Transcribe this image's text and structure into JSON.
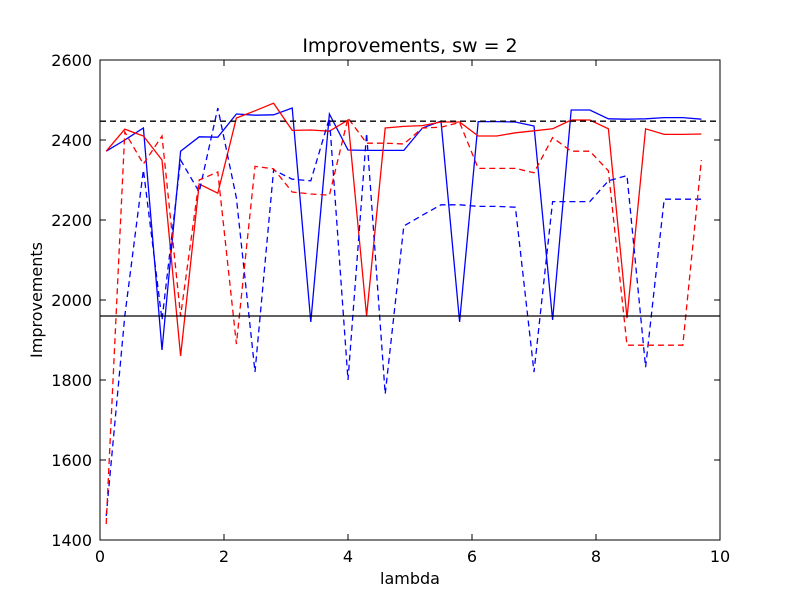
{
  "chart_data": {
    "type": "line",
    "title": "Improvements, sw = 2",
    "xlabel": "lambda",
    "ylabel": "Improvements",
    "xlim": [
      0,
      10
    ],
    "ylim": [
      1400,
      2600
    ],
    "xticks": [
      0,
      2,
      4,
      6,
      8,
      10
    ],
    "yticks": [
      1400,
      1600,
      1800,
      2000,
      2200,
      2400,
      2600
    ],
    "grid": false,
    "legend": "none",
    "reference_lines": [
      {
        "y": 2447,
        "color": "#000000",
        "style": "dashed"
      },
      {
        "y": 1960,
        "color": "#000000",
        "style": "solid"
      }
    ],
    "series": [
      {
        "color": "#0000ff",
        "style": "solid",
        "x": [
          0.1,
          0.4,
          0.7,
          1.0,
          1.3,
          1.6,
          1.9,
          2.2,
          2.5,
          2.8,
          3.1,
          3.4,
          3.7,
          4.0,
          4.3,
          4.6,
          4.9,
          5.2,
          5.5,
          5.8,
          6.1,
          6.4,
          6.7,
          7.0,
          7.3,
          7.6,
          7.9,
          8.2,
          8.5,
          8.8,
          9.1,
          9.4,
          9.7
        ],
        "values": [
          2372,
          2400,
          2430,
          1875,
          2372,
          2408,
          2407,
          2465,
          2462,
          2463,
          2480,
          1945,
          2465,
          2375,
          2374,
          2374,
          2374,
          2430,
          2447,
          1945,
          2446,
          2446,
          2445,
          2435,
          1950,
          2475,
          2475,
          2453,
          2452,
          2453,
          2456,
          2456,
          2452
        ]
      },
      {
        "color": "#ff0000",
        "style": "solid",
        "x": [
          0.1,
          0.4,
          0.7,
          1.0,
          1.3,
          1.6,
          1.9,
          2.2,
          2.5,
          2.8,
          3.1,
          3.4,
          3.7,
          4.0,
          4.3,
          4.6,
          4.9,
          5.2,
          5.5,
          5.8,
          6.1,
          6.4,
          6.7,
          7.0,
          7.3,
          7.6,
          7.9,
          8.2,
          8.5,
          8.8,
          9.1,
          9.4,
          9.7
        ],
        "values": [
          2372,
          2427,
          2410,
          2350,
          1860,
          2290,
          2267,
          2455,
          2473,
          2492,
          2424,
          2425,
          2422,
          2450,
          1960,
          2430,
          2434,
          2436,
          2445,
          2445,
          2410,
          2410,
          2418,
          2423,
          2428,
          2450,
          2450,
          2428,
          1955,
          2428,
          2414,
          2414,
          2415
        ]
      },
      {
        "color": "#0000ff",
        "style": "dashed",
        "x": [
          0.1,
          0.4,
          0.7,
          1.0,
          1.3,
          1.6,
          1.9,
          2.2,
          2.5,
          2.8,
          3.1,
          3.4,
          3.7,
          4.0,
          4.3,
          4.6,
          4.9,
          5.2,
          5.5,
          5.8,
          6.1,
          6.4,
          6.7,
          7.0,
          7.3,
          7.6,
          7.9,
          8.2,
          8.5,
          8.8,
          9.1,
          9.4,
          9.7
        ],
        "values": [
          1460,
          1960,
          2325,
          1950,
          2350,
          2270,
          2480,
          2255,
          1820,
          2325,
          2302,
          2298,
          2455,
          1800,
          2417,
          1765,
          2185,
          2212,
          2238,
          2238,
          2234,
          2234,
          2232,
          1820,
          2246,
          2246,
          2246,
          2298,
          2311,
          1832,
          2252,
          2252,
          2252
        ]
      },
      {
        "color": "#ff0000",
        "style": "dashed",
        "x": [
          0.1,
          0.4,
          0.7,
          1.0,
          1.3,
          1.6,
          1.9,
          2.2,
          2.5,
          2.8,
          3.1,
          3.4,
          3.7,
          4.0,
          4.3,
          4.6,
          4.9,
          5.2,
          5.5,
          5.8,
          6.1,
          6.4,
          6.7,
          7.0,
          7.3,
          7.6,
          7.9,
          8.2,
          8.5,
          8.8,
          9.1,
          9.4,
          9.7
        ],
        "values": [
          1440,
          2420,
          2340,
          2410,
          1960,
          2300,
          2320,
          1890,
          2334,
          2328,
          2270,
          2265,
          2262,
          2455,
          2392,
          2392,
          2390,
          2430,
          2432,
          2444,
          2329,
          2329,
          2329,
          2318,
          2406,
          2372,
          2372,
          2323,
          1887,
          1887,
          1887,
          1887,
          2350
        ]
      }
    ]
  }
}
